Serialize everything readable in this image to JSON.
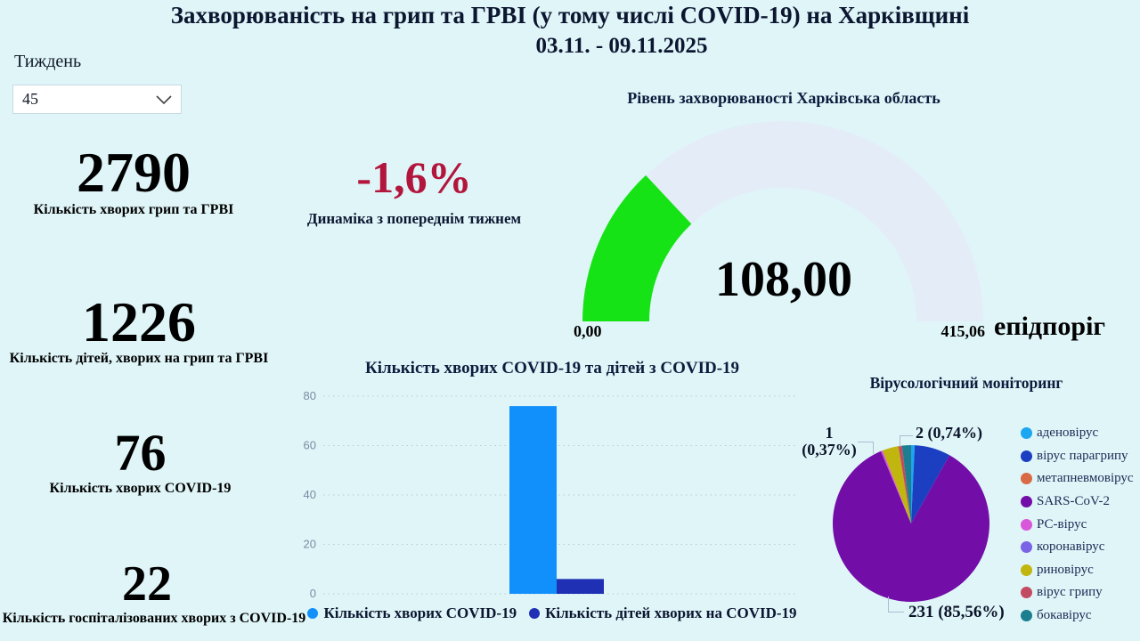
{
  "page_background": "#dff5f8",
  "title": {
    "line1": "Захворюваність на грип та ГРВІ (у тому числі COVID-19) на Харківщині",
    "line2": "03.11. - 09.11.2025"
  },
  "week_filter": {
    "label": "Тиждень",
    "value": "45"
  },
  "kpis": [
    {
      "value": "2790",
      "label": "Кількість хворих грип та ГРВІ"
    },
    {
      "value": "1226",
      "label": "Кількість дітей, хворих на грип та ГРВІ"
    },
    {
      "value": "76",
      "label": "Кількість хворих COVID-19"
    },
    {
      "value": "22",
      "label": "Кількість госпіталізованих хворих з COVID-19"
    }
  ],
  "dynamics": {
    "value": "-1,6%",
    "label": "Динаміка з попереднім тижнем",
    "value_color": "#b2163c"
  },
  "chart_data": [
    {
      "type": "gauge",
      "title": "Рівень захворюваності Харківська область",
      "value": 108.0,
      "value_label": "108,00",
      "min": 0,
      "min_label": "0,00",
      "max": 415.06,
      "max_label": "415,06",
      "target_label": "епідпоріг",
      "fill_color": "#16e316",
      "track_color": "#e4ecf8"
    },
    {
      "type": "bar",
      "title": "Кількість хворих COVID-19 та дітей з COVID-19",
      "categories": [
        ""
      ],
      "series": [
        {
          "name": "Кількість хворих COVID-19",
          "values": [
            76
          ],
          "color": "#1190fb"
        },
        {
          "name": "Кількість дітей хворих на COVID-19",
          "values": [
            6
          ],
          "color": "#1f30b4"
        }
      ],
      "ylim": [
        0,
        80
      ],
      "yticks": [
        0,
        20,
        40,
        60,
        80
      ],
      "grid": "dotted-horizontal",
      "legend_position": "bottom"
    },
    {
      "type": "pie",
      "title": "Вірусологічний моніторинг",
      "total": 270,
      "slices": [
        {
          "label": "аденовірус",
          "value": 2,
          "color": "#1ba6f2",
          "callout": "2 (0,74%)"
        },
        {
          "label": "вірус парагрипу",
          "value": 20,
          "color": "#1b3fc0"
        },
        {
          "label": "метапневмовірус",
          "value": 0,
          "color": "#d96a45"
        },
        {
          "label": "SARS-CoV-2",
          "value": 231,
          "color": "#730da8",
          "callout": "231 (85,56%)"
        },
        {
          "label": "РС-вірус",
          "value": 1,
          "color": "#d957d9",
          "callout": "1 (0,37%)"
        },
        {
          "label": "коронавірус",
          "value": 0,
          "color": "#7a63e6"
        },
        {
          "label": "риновірус",
          "value": 9,
          "color": "#c1b50f"
        },
        {
          "label": "вірус грипу",
          "value": 2,
          "color": "#c24b61"
        },
        {
          "label": "бокавірус",
          "value": 5,
          "color": "#1c7e8e"
        }
      ],
      "legend_position": "right"
    }
  ]
}
